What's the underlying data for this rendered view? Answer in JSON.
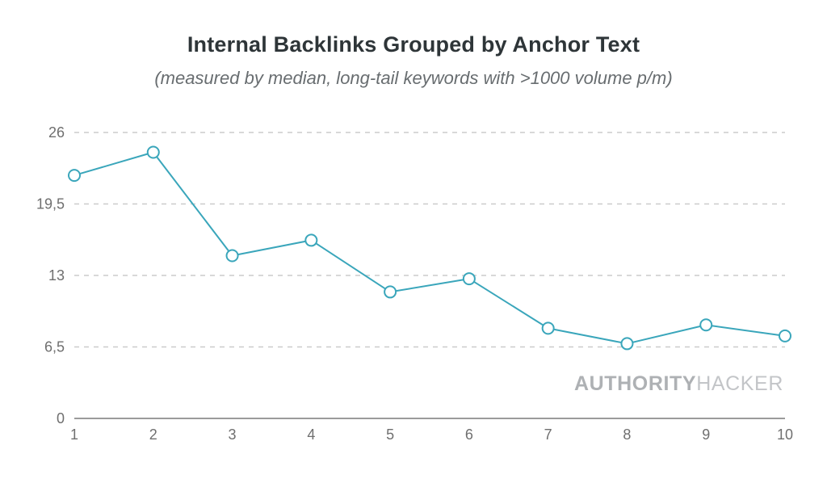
{
  "header": {
    "title": "Internal Backlinks Grouped by Anchor Text",
    "subtitle": "(measured by median, long-tail keywords with >1000 volume p/m)"
  },
  "watermark": {
    "bold_part": "AUTHORITY",
    "light_part": "HACKER"
  },
  "chart_data": {
    "type": "line",
    "title": "Internal Backlinks Grouped by Anchor Text",
    "subtitle": "(measured by median, long-tail keywords with >1000 volume p/m)",
    "x": [
      1,
      2,
      3,
      4,
      5,
      6,
      7,
      8,
      9,
      10
    ],
    "x_tick_labels": [
      "1",
      "2",
      "3",
      "4",
      "5",
      "6",
      "7",
      "8",
      "9",
      "10"
    ],
    "values": [
      22.1,
      24.2,
      14.8,
      16.2,
      11.5,
      12.7,
      8.2,
      6.8,
      8.5,
      7.5
    ],
    "y_ticks": [
      {
        "value": 0,
        "label": "0"
      },
      {
        "value": 6.5,
        "label": "6,5"
      },
      {
        "value": 13,
        "label": "13"
      },
      {
        "value": 19.5,
        "label": "19,5"
      },
      {
        "value": 26,
        "label": "26"
      }
    ],
    "ylim": [
      0,
      26
    ],
    "xlabel": "",
    "ylabel": "",
    "legend": "none",
    "grid": "horizontal dashed, solid baseline at 0",
    "colors": {
      "line": "#3aa6bb",
      "marker_fill": "#ffffff",
      "grid_line": "#cbcbcb",
      "axis_line": "#9b9b9b",
      "tick_label": "#6f6f6f"
    }
  }
}
